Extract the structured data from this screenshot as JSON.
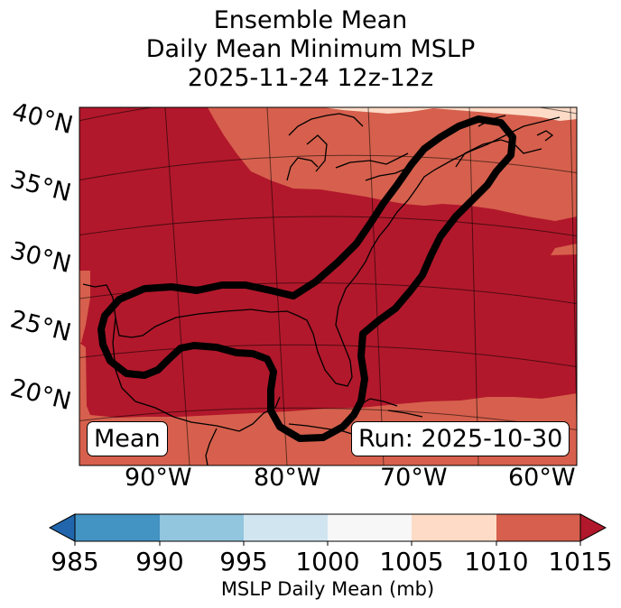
{
  "title": {
    "line1": "Ensemble Mean",
    "line2": "Daily Mean Minimum MSLP",
    "line3": "2025-11-24 12z-12z"
  },
  "map": {
    "lat_labels": [
      "40°N",
      "35°N",
      "30°N",
      "25°N",
      "20°N"
    ],
    "lon_labels": [
      "90°W",
      "80°W",
      "70°W",
      "60°W"
    ],
    "left_box": "Mean",
    "right_box": "Run: 2025-10-30",
    "colors": {
      "c1010_1015": "#b2182b",
      "c1005_1010": "#d6604d",
      "c1000_1005": "#fddbc7",
      "coast": "#000000",
      "contour": "#000000"
    }
  },
  "colorbar": {
    "ticks": [
      "985",
      "990",
      "995",
      "1000",
      "1005",
      "1010",
      "1015"
    ],
    "label": "MSLP Daily Mean (mb)",
    "colors": [
      "#2166ac",
      "#4393c3",
      "#92c5de",
      "#d1e5f0",
      "#f7f7f7",
      "#fddbc7",
      "#d6604d",
      "#b2182b"
    ]
  }
}
